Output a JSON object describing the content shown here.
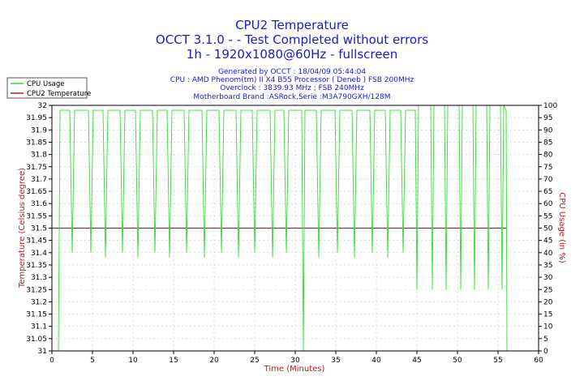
{
  "chart_data": {
    "type": "line",
    "title_lines": [
      "CPU2 Temperature",
      "OCCT 3.1.0 -  - Test Completed without errors",
      "1h - 1920x1080@60Hz - fullscreen"
    ],
    "info_lines": [
      "Generated by OCCT : 18/04/09 05:44:04",
      "CPU : AMD Phenom(tm) II X4 B55 Processor ( Deneb ) FSB 200MHz",
      "Overclock : 3839.93 MHz ; FSB 240MHz",
      "Motherboard Brand :ASRock,Serie :M3A790GXH/128M"
    ],
    "xlabel": "Time (Minutes)",
    "ylabel_left": "Temperature (Celsius degree)",
    "ylabel_right": "CPU Usage (in %)",
    "xlim": [
      0,
      60
    ],
    "ylim_left": [
      31,
      32
    ],
    "ylim_right": [
      0,
      100
    ],
    "x_ticks": [
      "0",
      "5",
      "10",
      "15",
      "20",
      "25",
      "30",
      "35",
      "40",
      "45",
      "50",
      "55",
      "60"
    ],
    "y_ticks_left": [
      "31",
      "31.05",
      "31.1",
      "31.15",
      "31.2",
      "31.25",
      "31.3",
      "31.35",
      "31.4",
      "31.45",
      "31.5",
      "31.55",
      "31.6",
      "31.65",
      "31.7",
      "31.75",
      "31.8",
      "31.85",
      "31.9",
      "31.95",
      "32"
    ],
    "y_ticks_right": [
      "0",
      "5",
      "10",
      "15",
      "20",
      "25",
      "30",
      "35",
      "40",
      "45",
      "50",
      "55",
      "60",
      "65",
      "70",
      "75",
      "80",
      "85",
      "90",
      "95",
      "100"
    ],
    "legend": [
      {
        "label": "CPU Usage",
        "color": "#33dd33"
      },
      {
        "label": "CPU2 Temperature",
        "color": "#aa2222"
      }
    ],
    "series": [
      {
        "name": "CPU2 Temperature",
        "axis": "left",
        "color": "#aa2222",
        "x": [
          0,
          56
        ],
        "values": [
          31.5,
          31.5
        ]
      },
      {
        "name": "CPU Usage",
        "axis": "right",
        "color": "#33dd33",
        "x": [
          0,
          0.8,
          1.0,
          1.2,
          2.2,
          2.5,
          2.8,
          4.5,
          4.8,
          5.1,
          6.3,
          6.6,
          6.9,
          8.4,
          8.7,
          9.0,
          10.3,
          10.6,
          10.9,
          12.4,
          12.7,
          13.0,
          14.2,
          14.5,
          14.8,
          16.3,
          16.6,
          16.9,
          18.5,
          18.8,
          19.1,
          20.6,
          20.9,
          21.2,
          22.7,
          23.0,
          23.3,
          24.7,
          25.0,
          25.3,
          26.9,
          27.2,
          27.5,
          28.6,
          28.9,
          29.2,
          30.8,
          31.0,
          31.2,
          32.6,
          32.9,
          33.2,
          34.9,
          35.2,
          35.5,
          37.0,
          37.3,
          37.6,
          39.2,
          39.5,
          39.8,
          41.1,
          41.4,
          41.7,
          43.0,
          43.3,
          43.6,
          44.8,
          45.0,
          45.2,
          46.7,
          46.9,
          47.1,
          48.4,
          48.6,
          48.8,
          50.2,
          50.4,
          50.6,
          51.9,
          52.1,
          52.3,
          53.6,
          53.8,
          54.0,
          55.3,
          55.5,
          55.7,
          56.0,
          56.1
        ],
        "values": [
          0,
          0,
          98,
          98,
          98,
          40,
          98,
          98,
          40,
          98,
          98,
          38,
          98,
          98,
          40,
          98,
          98,
          38,
          98,
          98,
          40,
          98,
          98,
          38,
          98,
          98,
          40,
          98,
          98,
          38,
          98,
          98,
          40,
          98,
          98,
          38,
          98,
          98,
          40,
          98,
          98,
          38,
          98,
          98,
          40,
          98,
          98,
          0,
          98,
          98,
          38,
          98,
          98,
          40,
          98,
          98,
          38,
          98,
          98,
          40,
          98,
          98,
          38,
          98,
          98,
          40,
          98,
          98,
          25,
          100,
          100,
          25,
          100,
          100,
          25,
          100,
          100,
          25,
          100,
          100,
          25,
          100,
          100,
          25,
          100,
          100,
          25,
          100,
          98,
          0
        ]
      }
    ]
  }
}
